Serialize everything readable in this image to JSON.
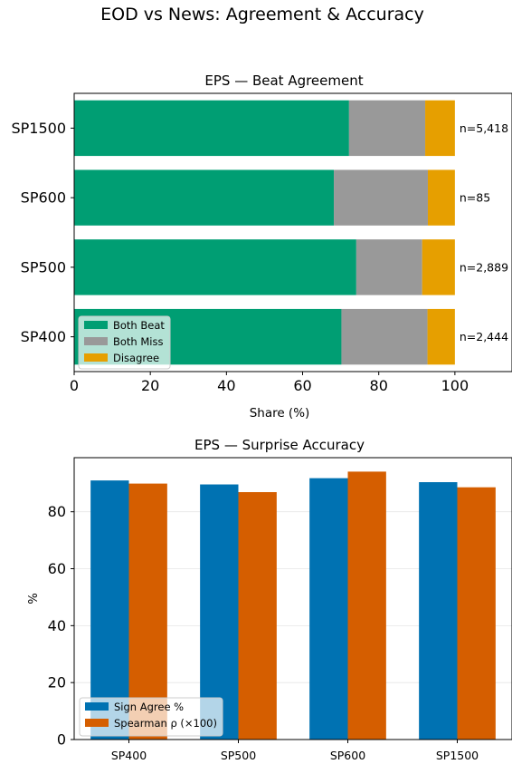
{
  "suptitle": "EOD vs News: Agreement & Accuracy",
  "colors": {
    "both_beat": "#009E73",
    "both_miss": "#999999",
    "disagree": "#E69F00",
    "sign_agree": "#0072B2",
    "spearman": "#D55E00"
  },
  "chart_data": [
    {
      "type": "bar",
      "orientation": "horizontal",
      "stacked": true,
      "title": "EPS — Beat Agreement",
      "xlabel": "Share (%)",
      "ylabel": "",
      "xlim": [
        0,
        115
      ],
      "xticks": [
        0,
        20,
        40,
        60,
        80,
        100
      ],
      "categories": [
        "SP1500",
        "SP600",
        "SP500",
        "SP400"
      ],
      "series": [
        {
          "name": "Both Beat",
          "color": "#009E73",
          "values": [
            72.2,
            68.2,
            74.1,
            70.2
          ]
        },
        {
          "name": "Both Miss",
          "color": "#999999",
          "values": [
            20.0,
            24.7,
            17.3,
            22.6
          ]
        },
        {
          "name": "Disagree",
          "color": "#E69F00",
          "values": [
            7.8,
            7.1,
            8.6,
            7.2
          ]
        }
      ],
      "annotations": [
        "n=5,418",
        "n=85",
        "n=2,889",
        "n=2,444"
      ],
      "legend": "lower-left",
      "grid": false
    },
    {
      "type": "bar",
      "title": "EPS — Surprise Accuracy",
      "xlabel": "",
      "ylabel": "%",
      "ylim": [
        0,
        99
      ],
      "yticks": [
        0,
        20,
        40,
        60,
        80
      ],
      "categories": [
        "SP400",
        "SP500",
        "SP600",
        "SP1500"
      ],
      "series": [
        {
          "name": "Sign Agree %",
          "color": "#0072B2",
          "values": [
            91.0,
            89.6,
            91.8,
            90.4
          ]
        },
        {
          "name": "Spearman ρ (×100)",
          "color": "#D55E00",
          "values": [
            89.9,
            86.9,
            94.1,
            88.6
          ]
        }
      ],
      "legend": "lower-left",
      "grid": "y"
    }
  ]
}
